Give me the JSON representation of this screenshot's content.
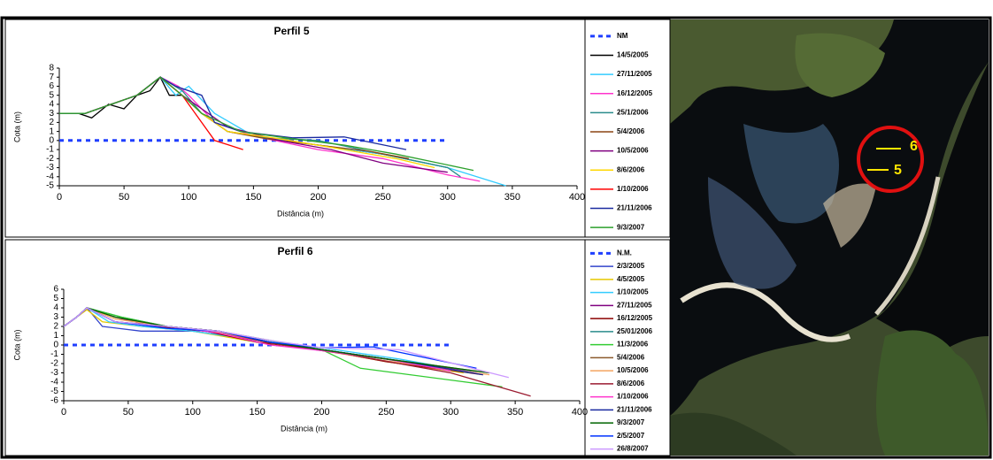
{
  "chart_data": [
    {
      "type": "line",
      "title": "Perfil 5",
      "x_label": "Distância (m)",
      "y_label": "Cota (m)",
      "xlim": [
        0,
        400
      ],
      "xticks": [
        0,
        50,
        100,
        150,
        200,
        250,
        300,
        350,
        400
      ],
      "ylim": [
        -5,
        8
      ],
      "yticks": [
        -5,
        -4,
        -3,
        -2,
        -1,
        0,
        1,
        2,
        3,
        4,
        5,
        6,
        7,
        8
      ],
      "series": [
        {
          "name": "NM",
          "color": "#1f3fff",
          "dashed": true,
          "x": [
            0,
            300
          ],
          "values": [
            0,
            0
          ]
        },
        {
          "name": "14/5/2005",
          "color": "#000000",
          "x": [
            0,
            15,
            25,
            38,
            50,
            60,
            70,
            78,
            85,
            95,
            110,
            130,
            160,
            200,
            250,
            300
          ],
          "values": [
            3,
            3,
            2.5,
            4,
            3.5,
            5,
            5.5,
            7,
            5,
            5,
            3,
            1,
            0.3,
            -0.5,
            -1.5,
            -3
          ]
        },
        {
          "name": "27/11/2005",
          "color": "#33ccff",
          "x": [
            0,
            20,
            40,
            60,
            78,
            90,
            100,
            120,
            150,
            200,
            250,
            300,
            345
          ],
          "values": [
            3,
            3,
            4,
            5,
            7,
            5,
            6,
            3,
            0.5,
            -0.5,
            -1.5,
            -3,
            -5
          ]
        },
        {
          "name": "16/12/2005",
          "color": "#ff33cc",
          "x": [
            0,
            20,
            40,
            60,
            78,
            92,
            100,
            120,
            150,
            200,
            250,
            300,
            325
          ],
          "values": [
            3,
            3,
            4,
            5,
            7,
            6,
            5,
            2,
            0.5,
            -1,
            -2,
            -3.8,
            -4.5
          ]
        },
        {
          "name": "25/1/2006",
          "color": "#2a8c8c",
          "x": [
            0,
            20,
            40,
            60,
            78,
            95,
            110,
            130,
            160,
            200,
            250,
            300,
            310
          ],
          "values": [
            3,
            3,
            4,
            5,
            7,
            5.5,
            3,
            1,
            0.3,
            0,
            -1.5,
            -3,
            -4
          ]
        },
        {
          "name": "5/4/2006",
          "color": "#8b4513",
          "x": [
            0,
            20,
            40,
            60,
            78,
            95,
            110,
            130,
            160,
            200,
            240,
            270
          ],
          "values": [
            3,
            3,
            4,
            5,
            7,
            5,
            3,
            1,
            0.2,
            -0.5,
            -1.2,
            -2
          ]
        },
        {
          "name": "10/5/2006",
          "color": "#800080",
          "x": [
            0,
            20,
            40,
            60,
            78,
            95,
            110,
            130,
            170,
            210,
            250,
            300
          ],
          "values": [
            3,
            3,
            4,
            5,
            7,
            5,
            3.5,
            1.5,
            0,
            -1,
            -2.5,
            -3.5
          ]
        },
        {
          "name": "8/6/2006",
          "color": "#ffd700",
          "x": [
            0,
            20,
            40,
            60,
            78,
            95,
            110,
            130,
            170,
            220,
            260,
            290
          ],
          "values": [
            3,
            3,
            4,
            5,
            7,
            5,
            3,
            1,
            0.2,
            -1,
            -2,
            -3
          ]
        },
        {
          "name": "1/10/2006",
          "color": "#ff0000",
          "x": [
            0,
            20,
            40,
            60,
            78,
            95,
            105,
            120,
            142
          ],
          "values": [
            3,
            3,
            4,
            5,
            7,
            5,
            3,
            0,
            -1
          ]
        },
        {
          "name": "21/11/2006",
          "color": "#1a2aa0",
          "x": [
            0,
            20,
            40,
            60,
            78,
            90,
            110,
            120,
            140,
            180,
            220,
            268
          ],
          "values": [
            3,
            3,
            4,
            5,
            7,
            6,
            5,
            2,
            1,
            0.3,
            0.4,
            -1
          ]
        },
        {
          "name": "9/3/2007",
          "color": "#2ca02c",
          "x": [
            0,
            20,
            40,
            60,
            78,
            95,
            110,
            140,
            180,
            220,
            260,
            320
          ],
          "values": [
            3,
            3,
            4,
            5,
            7,
            5,
            3,
            1,
            0.2,
            -0.5,
            -1.5,
            -3.3
          ]
        }
      ]
    },
    {
      "type": "line",
      "title": "Perfil 6",
      "x_label": "Distância (m)",
      "y_label": "Cota (m)",
      "xlim": [
        0,
        400
      ],
      "xticks": [
        0,
        50,
        100,
        150,
        200,
        250,
        300,
        350,
        400
      ],
      "ylim": [
        -6,
        6
      ],
      "yticks": [
        -6,
        -5,
        -4,
        -3,
        -2,
        -1,
        0,
        1,
        2,
        3,
        4,
        5,
        6
      ],
      "series": [
        {
          "name": "N.M.",
          "color": "#1f3fff",
          "dashed": true,
          "x": [
            0,
            300
          ],
          "values": [
            0,
            0
          ]
        },
        {
          "name": "2/3/2005",
          "color": "#3344cc",
          "x": [
            0,
            10,
            18,
            30,
            60,
            100,
            150,
            200,
            250,
            300
          ],
          "values": [
            2,
            3,
            4,
            2,
            1.5,
            1.5,
            0.5,
            -0.5,
            -1.5,
            -2.5
          ]
        },
        {
          "name": "4/5/2005",
          "color": "#e6c800",
          "x": [
            0,
            10,
            18,
            30,
            60,
            100,
            150,
            200,
            250,
            310
          ],
          "values": [
            2,
            3,
            3.8,
            2.5,
            2,
            1.5,
            0.3,
            -0.5,
            -1.8,
            -3
          ]
        },
        {
          "name": "1/10/2005",
          "color": "#33ccff",
          "x": [
            0,
            10,
            18,
            35,
            60,
            100,
            150,
            200,
            260,
            320
          ],
          "values": [
            2,
            3,
            4,
            2.5,
            2,
            1.5,
            0.5,
            -0.3,
            -1.5,
            -3
          ]
        },
        {
          "name": "27/11/2005",
          "color": "#800080",
          "x": [
            0,
            10,
            18,
            40,
            70,
            110,
            150,
            200,
            250,
            320
          ],
          "values": [
            2,
            3,
            4,
            3,
            2,
            1.5,
            0.5,
            -0.5,
            -1.5,
            -3
          ]
        },
        {
          "name": "16/12/2005",
          "color": "#8b0000",
          "x": [
            0,
            10,
            18,
            40,
            70,
            110,
            150,
            200,
            250,
            325
          ],
          "values": [
            2,
            3,
            4,
            2.5,
            2,
            1.5,
            0.3,
            -0.5,
            -1.8,
            -3.2
          ]
        },
        {
          "name": "25/01/2006",
          "color": "#2a8c8c",
          "x": [
            0,
            10,
            18,
            45,
            80,
            120,
            160,
            200,
            250,
            315
          ],
          "values": [
            2,
            3,
            4,
            3,
            2,
            1.5,
            0.3,
            -0.5,
            -1.5,
            -3
          ]
        },
        {
          "name": "11/3/2006",
          "color": "#33cc33",
          "x": [
            0,
            10,
            18,
            45,
            80,
            120,
            160,
            200,
            230,
            340
          ],
          "values": [
            2,
            3,
            4,
            3,
            2,
            1.5,
            0.5,
            -0.5,
            -2.5,
            -4.5
          ]
        },
        {
          "name": "5/4/2006",
          "color": "#8b5a2b",
          "x": [
            0,
            10,
            18,
            40,
            80,
            120,
            160,
            200,
            250,
            330
          ],
          "values": [
            2,
            3,
            4,
            3,
            2,
            1.5,
            0.3,
            -0.5,
            -1.5,
            -3
          ]
        },
        {
          "name": "10/5/2006",
          "color": "#f4a460",
          "x": [
            0,
            10,
            18,
            40,
            80,
            120,
            160,
            200,
            250,
            330
          ],
          "values": [
            2,
            3,
            4,
            2.8,
            2,
            1.4,
            0.2,
            -0.6,
            -1.7,
            -3.2
          ]
        },
        {
          "name": "8/6/2006",
          "color": "#9b1b30",
          "x": [
            0,
            10,
            18,
            40,
            80,
            120,
            160,
            220,
            300,
            362
          ],
          "values": [
            2,
            3,
            4,
            2.5,
            2,
            1.5,
            0.2,
            -1,
            -3,
            -5.5
          ]
        },
        {
          "name": "1/10/2006",
          "color": "#ff33cc",
          "x": [
            0,
            10,
            18,
            40,
            80,
            120,
            160,
            200,
            250,
            300
          ],
          "values": [
            2,
            3,
            4,
            2.5,
            2,
            1.3,
            0,
            -0.6,
            -1.5,
            -2.8
          ]
        },
        {
          "name": "21/11/2006",
          "color": "#1a2aa0",
          "x": [
            0,
            10,
            18,
            40,
            80,
            120,
            160,
            200,
            260,
            325
          ],
          "values": [
            2,
            3,
            4,
            2.5,
            2,
            1.5,
            0.3,
            -0.5,
            -1.7,
            -3.2
          ]
        },
        {
          "name": "9/3/2007",
          "color": "#006400",
          "x": [
            0,
            10,
            18,
            40,
            80,
            120,
            160,
            200,
            250,
            330
          ],
          "values": [
            2,
            3,
            4,
            3,
            2,
            1.5,
            0.3,
            -0.5,
            -1.5,
            -3
          ]
        },
        {
          "name": "2/5/2007",
          "color": "#0033ff",
          "x": [
            0,
            10,
            18,
            40,
            80,
            120,
            160,
            200,
            240,
            320
          ],
          "values": [
            2,
            3,
            4,
            2.5,
            1.8,
            1.5,
            0.3,
            -0.3,
            -0.2,
            -2.5
          ]
        },
        {
          "name": "26/8/2007",
          "color": "#cc99ff",
          "x": [
            0,
            10,
            18,
            40,
            80,
            120,
            160,
            200,
            260,
            345
          ],
          "values": [
            2,
            3,
            4,
            2.5,
            2,
            1.5,
            0.5,
            -0.3,
            -0.5,
            -3.5
          ]
        }
      ]
    }
  ],
  "map": {
    "labels": [
      "6",
      "5"
    ]
  }
}
